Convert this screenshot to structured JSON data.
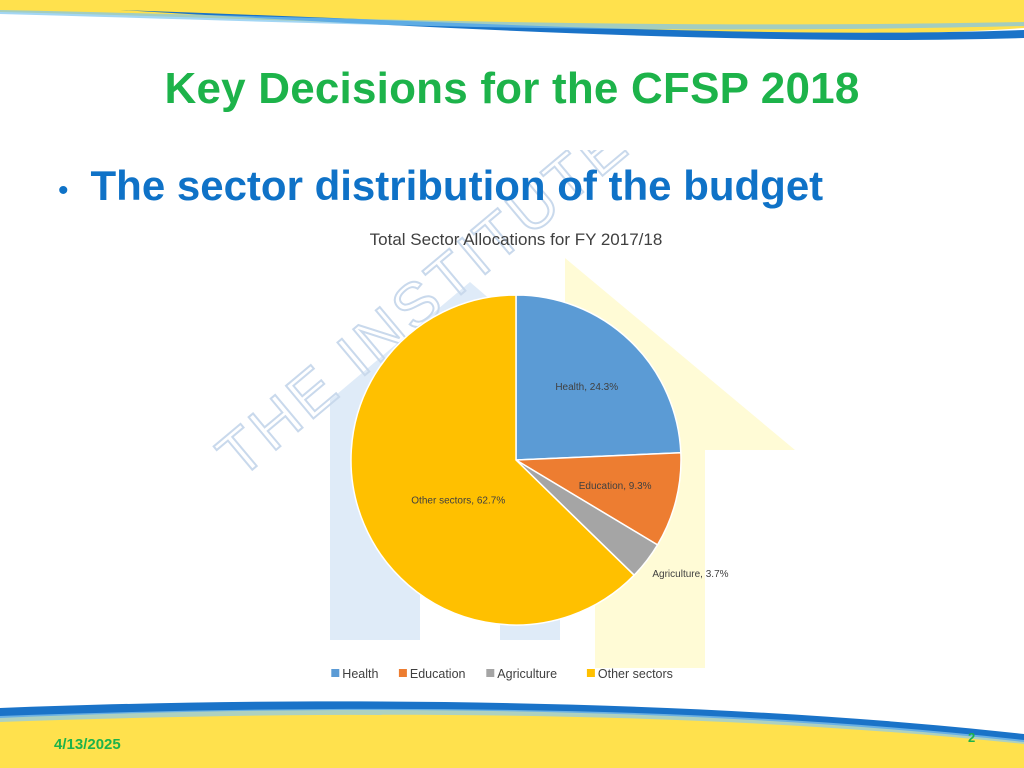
{
  "slide": {
    "title": "Key Decisions for the CFSP 2018",
    "bullet": "The sector distribution of the budget",
    "watermark": "THE INSTITUTE",
    "date": "4/13/2025",
    "page_number": "2"
  },
  "chart_data": {
    "type": "pie",
    "title": "Total Sector Allocations for FY 2017/18",
    "categories": [
      "Health",
      "Education",
      "Agriculture",
      "Other sectors"
    ],
    "values": [
      24.3,
      9.3,
      3.7,
      62.7
    ],
    "data_labels": [
      "Health, 24.3%",
      "Education, 9.3%",
      "Agriculture, 3.7%",
      "Other sectors, 62.7%"
    ],
    "colors": [
      "#5b9bd5",
      "#ed7d31",
      "#a5a5a5",
      "#ffc000"
    ],
    "unit": "%",
    "legend_position": "bottom"
  }
}
